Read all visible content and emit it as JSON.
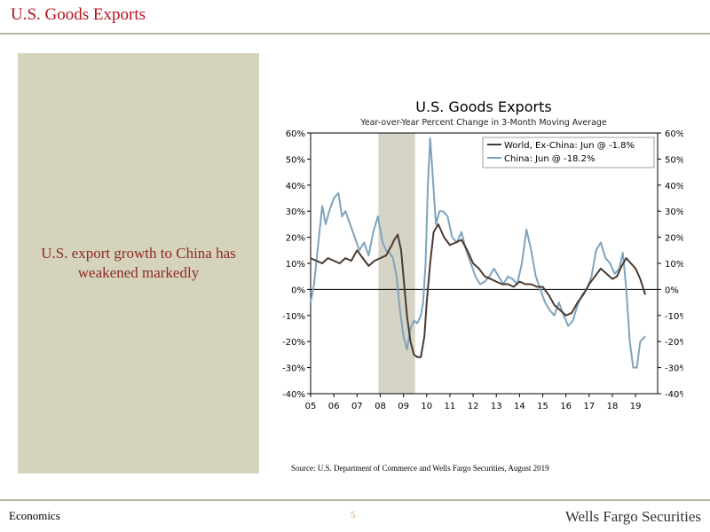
{
  "header": {
    "title": "U.S. Goods Exports"
  },
  "sidebar": {
    "text": "U.S. export growth to China has weakened markedly"
  },
  "footer": {
    "left": "Economics",
    "page": "5",
    "brand": "Wells Fargo Securities"
  },
  "source": "Source: U.S. Department of Commerce and Wells Fargo Securities, August 2019",
  "colors": {
    "title": "#b5121b",
    "panel": "#d6d3bc",
    "world": "#4a3a30",
    "china": "#7fa3bd",
    "recession": "#d6d3c7"
  },
  "chart_data": {
    "type": "line",
    "title": "U.S. Goods Exports",
    "subtitle": "Year-over-Year Percent Change in 3-Month Moving Average",
    "xlabel": "",
    "ylabel": "",
    "xlim": [
      2005,
      2019.95
    ],
    "ylim": [
      -40,
      60
    ],
    "y_ticks": [
      -40,
      -30,
      -20,
      -10,
      0,
      10,
      20,
      30,
      40,
      50,
      60
    ],
    "y_tick_labels": [
      "-40%",
      "-30%",
      "-20%",
      "-10%",
      "0%",
      "10%",
      "20%",
      "30%",
      "40%",
      "50%",
      "60%"
    ],
    "x_tick_labels": [
      "05",
      "06",
      "07",
      "08",
      "09",
      "10",
      "11",
      "12",
      "13",
      "14",
      "15",
      "16",
      "17",
      "18",
      "19"
    ],
    "recession": [
      2007.92,
      2009.5
    ],
    "legend_position": "top-right",
    "grid": false,
    "series": [
      {
        "name": "World, Ex-China: Jun @ -1.8%",
        "x": [
          2005.0,
          2005.25,
          2005.5,
          2005.75,
          2006.0,
          2006.25,
          2006.5,
          2006.75,
          2007.0,
          2007.25,
          2007.5,
          2007.75,
          2008.0,
          2008.25,
          2008.5,
          2008.6,
          2008.75,
          2008.9,
          2009.0,
          2009.15,
          2009.3,
          2009.45,
          2009.6,
          2009.75,
          2009.9,
          2010.0,
          2010.15,
          2010.3,
          2010.5,
          2010.75,
          2011.0,
          2011.25,
          2011.5,
          2011.75,
          2012.0,
          2012.25,
          2012.5,
          2012.75,
          2013.0,
          2013.25,
          2013.5,
          2013.75,
          2014.0,
          2014.25,
          2014.5,
          2014.75,
          2015.0,
          2015.25,
          2015.5,
          2015.75,
          2016.0,
          2016.25,
          2016.5,
          2016.75,
          2017.0,
          2017.25,
          2017.5,
          2017.75,
          2018.0,
          2018.2,
          2018.4,
          2018.6,
          2018.8,
          2019.0,
          2019.2,
          2019.42
        ],
        "values": [
          12,
          11,
          10,
          12,
          11,
          10,
          12,
          11,
          15,
          12,
          9,
          11,
          12,
          13,
          17,
          19,
          21,
          15,
          5,
          -10,
          -20,
          -25,
          -26,
          -26,
          -18,
          -5,
          10,
          22,
          25,
          20,
          17,
          18,
          19,
          15,
          10,
          8,
          5,
          4,
          3,
          2,
          2,
          1,
          3,
          2,
          2,
          1,
          1,
          -2,
          -6,
          -8,
          -10,
          -9,
          -5,
          -2,
          2,
          5,
          8,
          6,
          4,
          5,
          9,
          12,
          10,
          8,
          4,
          -2
        ]
      },
      {
        "name": "China: Jun @ -18.2%",
        "x": [
          2005.0,
          2005.15,
          2005.3,
          2005.5,
          2005.65,
          2005.8,
          2006.0,
          2006.2,
          2006.35,
          2006.5,
          2006.7,
          2006.9,
          2007.1,
          2007.3,
          2007.5,
          2007.7,
          2007.9,
          2008.1,
          2008.25,
          2008.4,
          2008.55,
          2008.7,
          2008.85,
          2009.0,
          2009.15,
          2009.3,
          2009.45,
          2009.6,
          2009.75,
          2009.85,
          2009.95,
          2010.05,
          2010.15,
          2010.25,
          2010.4,
          2010.55,
          2010.7,
          2010.9,
          2011.1,
          2011.3,
          2011.5,
          2011.7,
          2011.9,
          2012.1,
          2012.3,
          2012.5,
          2012.7,
          2012.9,
          2013.1,
          2013.3,
          2013.5,
          2013.7,
          2013.9,
          2014.1,
          2014.3,
          2014.5,
          2014.7,
          2014.9,
          2015.1,
          2015.3,
          2015.5,
          2015.7,
          2015.9,
          2016.1,
          2016.3,
          2016.5,
          2016.7,
          2016.9,
          2017.1,
          2017.3,
          2017.5,
          2017.7,
          2017.9,
          2018.1,
          2018.3,
          2018.45,
          2018.6,
          2018.75,
          2018.9,
          2019.05,
          2019.2,
          2019.42
        ],
        "values": [
          -5,
          2,
          15,
          32,
          25,
          30,
          35,
          37,
          28,
          30,
          25,
          20,
          15,
          18,
          13,
          22,
          28,
          18,
          15,
          14,
          12,
          5,
          -8,
          -18,
          -23,
          -15,
          -12,
          -13,
          -10,
          -5,
          10,
          40,
          58,
          45,
          25,
          30,
          30,
          28,
          20,
          18,
          22,
          15,
          10,
          5,
          2,
          3,
          5,
          8,
          5,
          2,
          5,
          4,
          2,
          10,
          23,
          15,
          5,
          0,
          -5,
          -8,
          -10,
          -5,
          -10,
          -14,
          -12,
          -6,
          -2,
          0,
          5,
          15,
          18,
          12,
          10,
          6,
          8,
          14,
          0,
          -20,
          -30,
          -30,
          -20,
          -18
        ]
      }
    ]
  }
}
